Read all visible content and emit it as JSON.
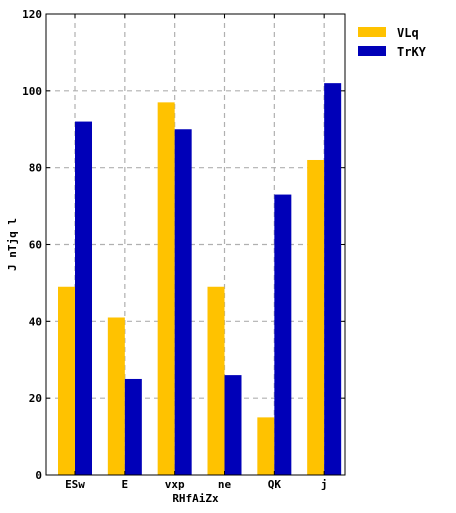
{
  "chart_data": {
    "type": "bar",
    "title": "",
    "xlabel": "RHfAiZx",
    "ylabel": "J nTjq l",
    "categories": [
      "ESw",
      "E",
      "vxp",
      "ne",
      "QK",
      "j"
    ],
    "series": [
      {
        "name": "VLq",
        "values": [
          49,
          41,
          97,
          49,
          15,
          82
        ]
      },
      {
        "name": "TrKY",
        "values": [
          92,
          25,
          90,
          26,
          73,
          102
        ]
      }
    ],
    "ylim": [
      0,
      120
    ],
    "yticks": [
      0,
      20,
      40,
      60,
      80,
      100,
      120
    ],
    "grid": true,
    "legend_position": "top-right outside",
    "colors": {
      "VLq": "#FFC200",
      "TrKY": "#0000B8",
      "grid": "#B0B0B0"
    }
  }
}
